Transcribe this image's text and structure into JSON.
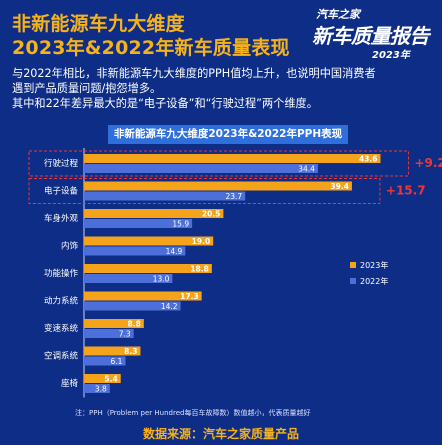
{
  "header": {
    "title_line1": "非新能源车九大维度",
    "title_line2": "2023年&2022年新车质量表现"
  },
  "logo": {
    "brand": "汽车之家",
    "main": "新车质量报告",
    "year": "2023年"
  },
  "intro": {
    "line1": "与2022年相比，非新能源车九大维度的PPH值均上升，也说明中国消费者",
    "line2": "遇到产品质量问题/抱怨增多。",
    "line3": "其中和22年差异最大的是“电子设备”和“行驶过程”两个维度。"
  },
  "colors": {
    "background": "#0e2d86",
    "series_2023": "#f6a31c",
    "series_2022": "#4d6fd9",
    "highlight": "#e8383a",
    "title_band": "#2e6fdc"
  },
  "chart_data": {
    "type": "bar",
    "orientation": "horizontal",
    "title": "非新能源车九大维度2023年&2022年PPH表现",
    "categories": [
      "行驶过程",
      "电子设备",
      "车身外观",
      "内饰",
      "功能操作",
      "动力系统",
      "变速系统",
      "空调系统",
      "座椅"
    ],
    "series": [
      {
        "name": "2023年",
        "values": [
          43.6,
          39.4,
          20.5,
          19.0,
          18.8,
          17.3,
          8.8,
          8.3,
          5.4
        ]
      },
      {
        "name": "2022年",
        "values": [
          34.4,
          23.7,
          15.9,
          14.9,
          13.0,
          14.2,
          7.3,
          6.1,
          3.8
        ]
      }
    ],
    "value_labels_2023": [
      "43.6",
      "39.4",
      "20.5",
      "19.0",
      "18.8",
      "17.3",
      "8.8",
      "8.3",
      "5.4"
    ],
    "value_labels_2022": [
      "34.4",
      "23.7",
      "15.9",
      "14.9",
      "13.0",
      "14.2",
      "7.3",
      "6.1",
      "3.8"
    ],
    "annotations": [
      {
        "category": "行驶过程",
        "text": "+9.2"
      },
      {
        "category": "电子设备",
        "text": "+15.7"
      }
    ],
    "xlim": [
      0,
      45
    ],
    "grid": false,
    "legend_position": "right"
  },
  "footnote": "注：PPH（Problem per Hundred每百车故障数）数值越小，代表质量越好",
  "source": "数据来源：汽车之家质量产品"
}
